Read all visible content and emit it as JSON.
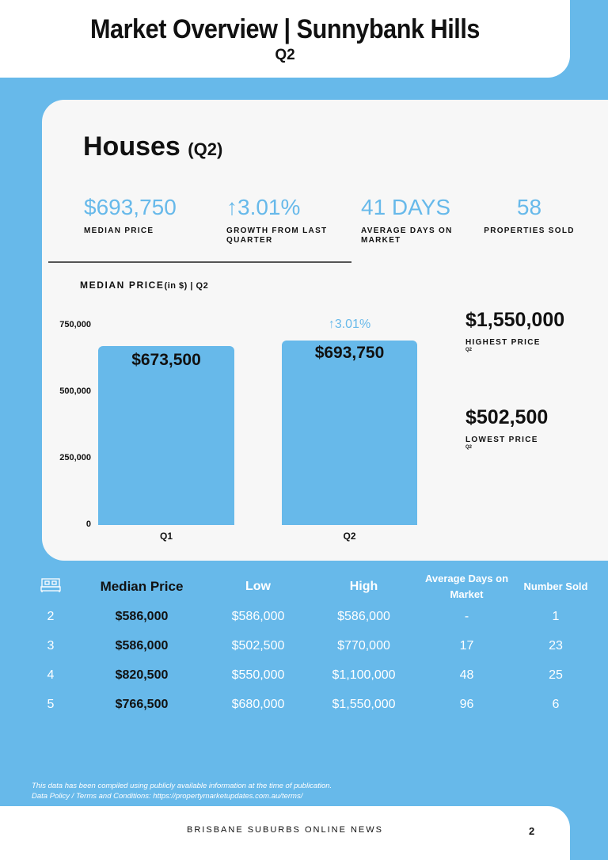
{
  "header": {
    "title": "Market Overview | Sunnybank Hills",
    "subtitle": "Q2"
  },
  "section": {
    "title": "Houses",
    "quarter": "(Q2)"
  },
  "stats": [
    {
      "value": "$693,750",
      "label": "MEDIAN PRICE"
    },
    {
      "value": "↑3.01%",
      "label": "GROWTH FROM LAST QUARTER"
    },
    {
      "value": "41 DAYS",
      "label": "AVERAGE DAYS ON MARKET"
    },
    {
      "value": "58",
      "label": "PROPERTIES SOLD"
    }
  ],
  "chart_data": {
    "type": "bar",
    "title": "MEDIAN PRICE",
    "title_unit": "(in $) | Q2",
    "categories": [
      "Q1",
      "Q2"
    ],
    "values": [
      673500,
      693750
    ],
    "data_labels": [
      "$673,500",
      "$693,750"
    ],
    "annotation": "↑3.01%",
    "yticks": [
      "0",
      "250,000",
      "500,000",
      "750,000"
    ],
    "ylim": [
      0,
      750000
    ]
  },
  "side": {
    "highest": {
      "value": "$1,550,000",
      "label": "HIGHEST PRICE",
      "sub": "Q2"
    },
    "lowest": {
      "value": "$502,500",
      "label": "LOWEST PRICE",
      "sub": "Q2"
    }
  },
  "table": {
    "headers": [
      "Median Price",
      "Low",
      "High",
      "Average Days on Market",
      "Number Sold"
    ],
    "rows": [
      [
        "2",
        "$586,000",
        "$586,000",
        "$586,000",
        "-",
        "1"
      ],
      [
        "3",
        "$586,000",
        "$502,500",
        "$770,000",
        "17",
        "23"
      ],
      [
        "4",
        "$820,500",
        "$550,000",
        "$1,100,000",
        "48",
        "25"
      ],
      [
        "5",
        "$766,500",
        "$680,000",
        "$1,550,000",
        "96",
        "6"
      ]
    ]
  },
  "note": {
    "line1": "This data has been compiled using publicly available information at the time of publication.",
    "line2": "Data Policy / Terms and Conditions: https://propertymarketupdates.com.au/terms/"
  },
  "footer": {
    "name": "BRISBANE SUBURBS ONLINE NEWS",
    "page": "2"
  }
}
